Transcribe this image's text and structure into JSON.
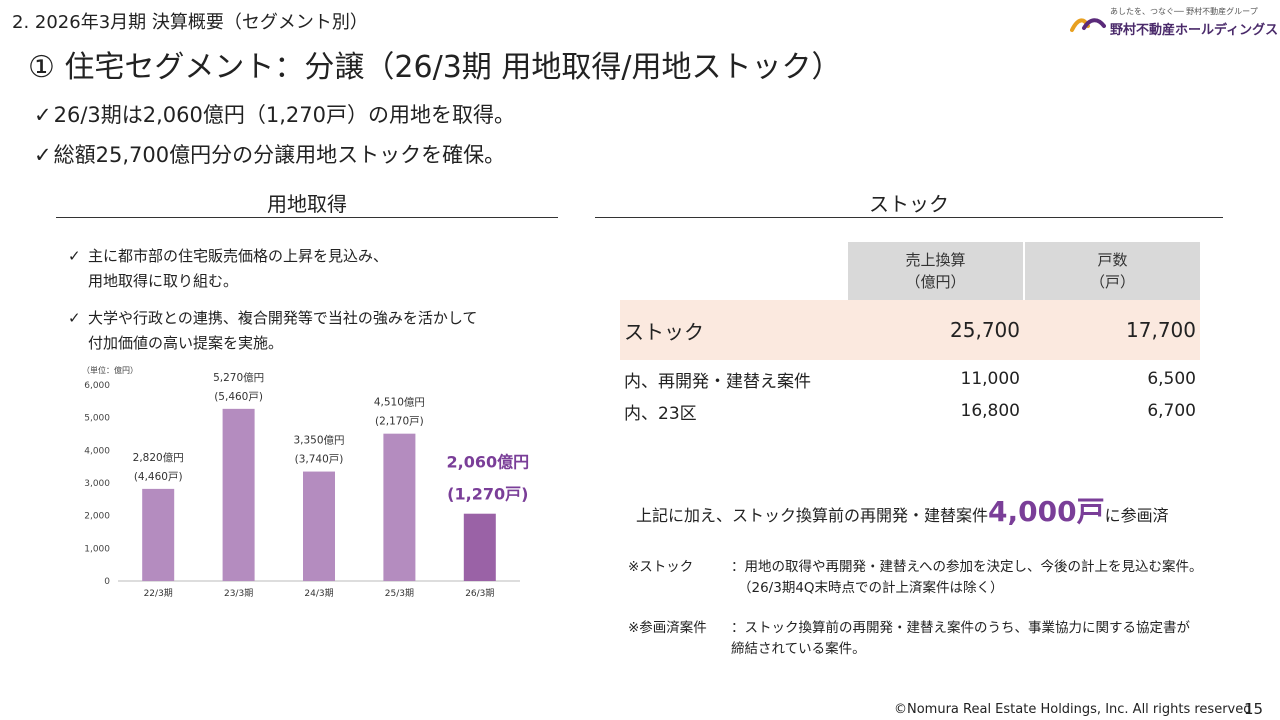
{
  "header": {
    "section_title": "2. 2026年3月期 決算概要（セグメント別）",
    "main_title": "① 住宅セグメント：分譲（26/3期 用地取得/用地ストック）",
    "bullets": [
      "26/3期は2,060億円（1,270戸）の用地を取得。",
      "総額25,700億円分の分譲用地ストックを確保。"
    ],
    "check_glyph": "✓"
  },
  "logo": {
    "tagline": "あしたを、つなぐ── 野村不動産グループ",
    "name": "野村不動産ホールディングス",
    "colors": [
      "#e8a020",
      "#5a2a7a"
    ]
  },
  "left": {
    "heading": "用地取得",
    "notes": [
      {
        "line1": "主に都市部の住宅販売価格の上昇を見込み、",
        "line2": "用地取得に取り組む。"
      },
      {
        "line1": "大学や行政との連携、複合開発等で当社の強みを活かして",
        "line2": "付加価値の高い提案を実施。"
      }
    ]
  },
  "chart_data": {
    "type": "bar",
    "unit_label": "（単位：億円）",
    "categories": [
      "22/3期",
      "23/3期",
      "24/3期",
      "25/3期",
      "26/3期"
    ],
    "values": [
      2820,
      5270,
      3350,
      4510,
      2060
    ],
    "value_labels": [
      "2,820億円",
      "5,270億円",
      "3,350億円",
      "4,510億円",
      "2,060億円"
    ],
    "unit_counts": [
      "(4,460戸)",
      "(5,460戸)",
      "(3,740戸)",
      "(2,170戸)",
      "(1,270戸)"
    ],
    "yticks": [
      "0",
      "1,000",
      "2,000",
      "3,000",
      "4,000",
      "5,000",
      "6,000"
    ],
    "ylim": [
      0,
      6000
    ],
    "colors": {
      "bar": "#b48cbf",
      "highlight_bar": "#9a62a6",
      "highlight_text": "#7a3e98"
    },
    "highlight_index": 4
  },
  "right": {
    "heading": "ストック",
    "table": {
      "col_headers": [
        {
          "line1": "売上換算",
          "line2": "（億円）"
        },
        {
          "line1": "戸数",
          "line2": "（戸）"
        }
      ],
      "rows": [
        {
          "label": "ストック",
          "sales": "25,700",
          "units": "17,700"
        },
        {
          "label": "内、再開発・建替え案件",
          "sales": "11,000",
          "units": "6,500"
        },
        {
          "label": "内、23区",
          "sales": "16,800",
          "units": "6,700"
        }
      ]
    },
    "extra_note": {
      "before": "上記に加え、ストック換算前の再開発・建替案件",
      "highlight": "4,000戸",
      "after": "に参画済"
    },
    "footnotes": [
      {
        "label": "※ストック",
        "line1": "：用地の取得や再開発・建替えへの参加を決定し、今後の計上を見込む案件。",
        "line2": "（26/3期4Q末時点での計上済案件は除く）"
      },
      {
        "label": "※参画済案件",
        "line1": "：ストック換算前の再開発・建替え案件のうち、事業協力に関する協定書が",
        "line2": "締結されている案件。"
      }
    ]
  },
  "footer": {
    "copyright": "©Nomura Real Estate Holdings, Inc. All rights reserved",
    "page": "15"
  }
}
